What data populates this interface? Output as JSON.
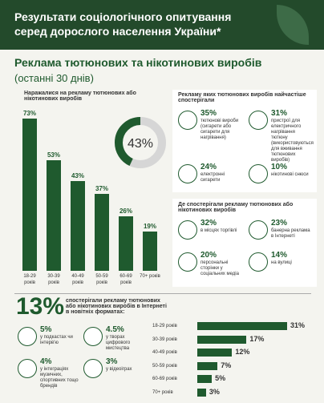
{
  "header": {
    "title": "Результати соціологічного опитування серед дорослого населення України*"
  },
  "section": {
    "title": "Реклама тютюнових та нікотинових виробів",
    "subtitle": "(останні 30 днів)"
  },
  "chart_data": [
    {
      "type": "bar",
      "title": "Наражалися на рекламу тютюнових або нікотинових виробів",
      "categories": [
        "18-29 років",
        "30-39 років",
        "40-49 років",
        "50-59 років",
        "60-69 років",
        "70+ років"
      ],
      "values": [
        73,
        53,
        43,
        37,
        26,
        19
      ],
      "value_labels": [
        "73%",
        "53%",
        "43%",
        "37%",
        "26%",
        "19%"
      ],
      "color": "#1f5a2e"
    },
    {
      "type": "donut",
      "values": [
        43
      ],
      "value_labels": [
        "43%"
      ],
      "color": "#1f5a2e",
      "track_color": "#d6d6d6"
    },
    {
      "type": "hbar",
      "categories": [
        "18-29 років",
        "30-39 років",
        "40-49 років",
        "50-59 років",
        "60-69 років",
        "70+ років"
      ],
      "values": [
        31,
        17,
        12,
        7,
        5,
        3
      ],
      "value_labels": [
        "31%",
        "17%",
        "12%",
        "7%",
        "5%",
        "3%"
      ],
      "color": "#1f5a2e"
    }
  ],
  "products": {
    "title": "Рекламу яких тютюнових виробів найчастіше спостерігали",
    "items": [
      {
        "value": "35%",
        "label": "тютюнові вироби (сигарети або сигарети для нагрівання)"
      },
      {
        "value": "31%",
        "label": "пристрої для електричного нагрівання тютюну (використовуються для вживання тютюнових виробів)"
      },
      {
        "value": "24%",
        "label": "електронні сигарети"
      },
      {
        "value": "10%",
        "label": "нікотинові снюси"
      }
    ]
  },
  "places": {
    "title": "Де спостерігали рекламу тютюнових або нікотинових виробів",
    "items": [
      {
        "value": "32%",
        "label": "в місцях торгівлі"
      },
      {
        "value": "23%",
        "label": "банерна реклама в Інтернеті"
      },
      {
        "value": "20%",
        "label": "персональні сторінки у соціальних медіа"
      },
      {
        "value": "14%",
        "label": "на вулиці"
      }
    ]
  },
  "internet": {
    "value": "13%",
    "text": "спостерігали рекламу тютюнових або нікотинових виробів в Інтернеті в новітніх форматах:",
    "items": [
      {
        "value": "5%",
        "label": "у подкастах чи інтерв'ю"
      },
      {
        "value": "4.5%",
        "label": "у творах цифрового мистецтва"
      },
      {
        "value": "4%",
        "label": "у інтеграціях музичних, спортивних тощо брендів"
      },
      {
        "value": "3%",
        "label": "у відеоіграх"
      }
    ]
  }
}
